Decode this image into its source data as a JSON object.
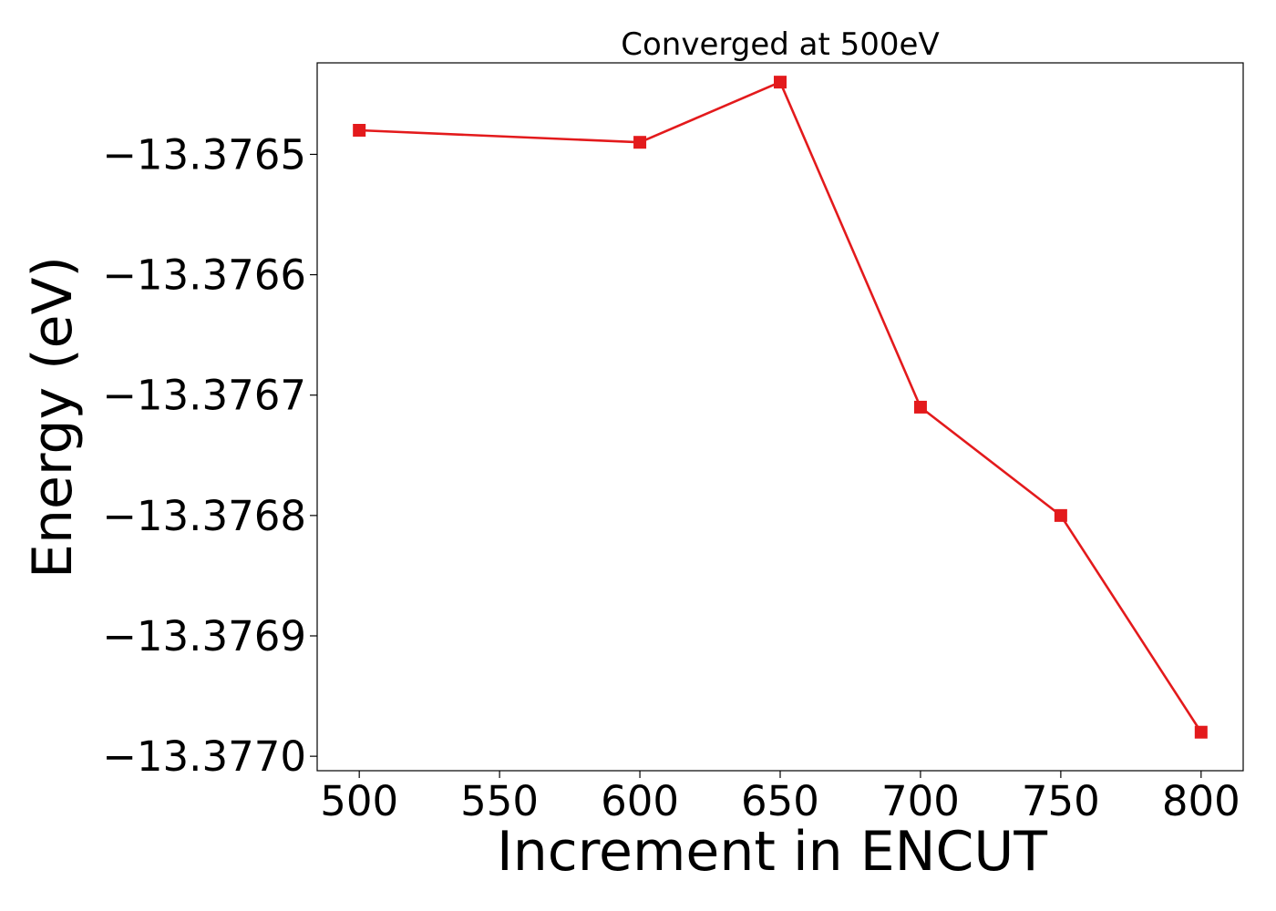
{
  "chart_data": {
    "type": "line",
    "title": "Converged at 500eV",
    "xlabel": "Increment in ENCUT",
    "ylabel": "Energy (eV)",
    "x": [
      500,
      600,
      650,
      700,
      750,
      800
    ],
    "series": [
      {
        "values": [
          -13.37648,
          -13.37649,
          -13.37644,
          -13.37671,
          -13.3768,
          -13.37698
        ],
        "color": "#e31a1c",
        "marker": "square"
      }
    ],
    "xlim": [
      485,
      815
    ],
    "ylim": [
      -13.377012,
      -13.376424
    ],
    "x_ticks": [
      500,
      550,
      600,
      650,
      700,
      750,
      800
    ],
    "x_tick_labels": [
      "500",
      "550",
      "600",
      "650",
      "700",
      "750",
      "800"
    ],
    "y_ticks": [
      -13.3765,
      -13.3766,
      -13.3767,
      -13.3768,
      -13.3769,
      -13.377
    ],
    "y_tick_labels": [
      "−13.3765",
      "−13.3766",
      "−13.3767",
      "−13.3768",
      "−13.3769",
      "−13.3770"
    ],
    "grid": false,
    "legend": false
  }
}
